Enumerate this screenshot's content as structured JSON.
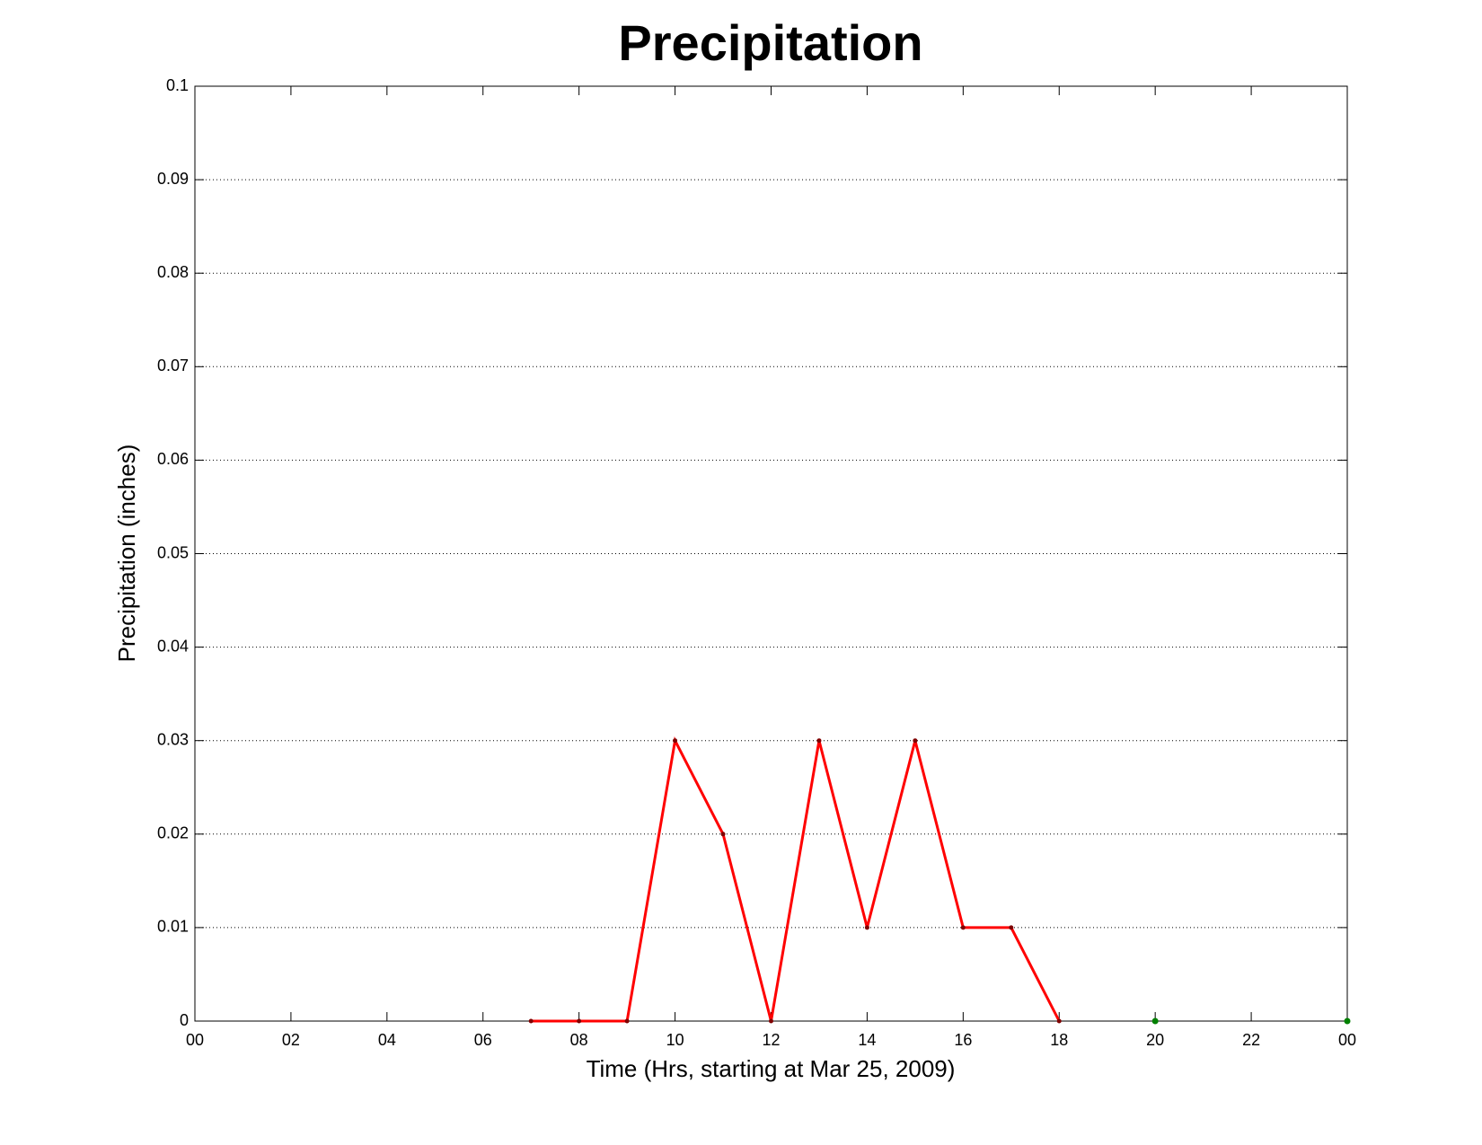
{
  "chart_data": {
    "type": "line",
    "title": "Precipitation",
    "xlabel": "Time (Hrs, starting at Mar 25, 2009)",
    "ylabel": "Precipitation (inches)",
    "xlim": [
      0,
      24
    ],
    "xticks": [
      {
        "value": 0,
        "label": "00"
      },
      {
        "value": 2,
        "label": "02"
      },
      {
        "value": 4,
        "label": "04"
      },
      {
        "value": 6,
        "label": "06"
      },
      {
        "value": 8,
        "label": "08"
      },
      10,
      12,
      14,
      16,
      18,
      20,
      22,
      {
        "value": 24,
        "label": "00"
      }
    ],
    "ylim": [
      0,
      0.1
    ],
    "yticks": [
      0,
      0.01,
      0.02,
      0.03,
      0.04,
      0.05,
      0.06,
      0.07,
      0.08,
      0.09,
      0.1
    ],
    "ygrid": true,
    "series": [
      {
        "color": "#ff0000",
        "marker_color": "#800000",
        "line": true,
        "x": [
          7,
          8,
          9,
          10,
          11,
          12,
          13,
          14,
          15,
          16,
          17,
          18
        ],
        "values": [
          0,
          0,
          0,
          0.03,
          0.02,
          0,
          0.03,
          0.01,
          0.03,
          0.01,
          0.01,
          0
        ]
      },
      {
        "color": "#008000",
        "marker_color": "#008000",
        "line": false,
        "x": [
          20,
          24
        ],
        "values": [
          0,
          0
        ]
      }
    ]
  }
}
